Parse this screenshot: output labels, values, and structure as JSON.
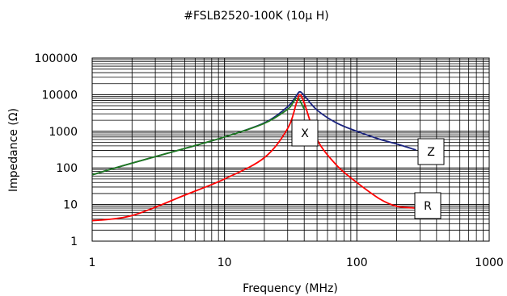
{
  "chart_data": {
    "type": "line",
    "title": "#FSLB2520-100K (10μ H)",
    "xlabel": "Frequency (MHz)",
    "ylabel": "Impedance (Ω)",
    "x_scale": "log",
    "y_scale": "log",
    "xlim": [
      1,
      1000
    ],
    "ylim": [
      1,
      100000
    ],
    "x_ticks": [
      {
        "value": 1,
        "label": "1"
      },
      {
        "value": 10,
        "label": "10"
      },
      {
        "value": 100,
        "label": "100"
      },
      {
        "value": 1000,
        "label": "1000"
      }
    ],
    "y_ticks": [
      {
        "value": 1,
        "label": "1"
      },
      {
        "value": 10,
        "label": "10"
      },
      {
        "value": 100,
        "label": "100"
      },
      {
        "value": 1000,
        "label": "1000"
      },
      {
        "value": 10000,
        "label": "10000"
      },
      {
        "value": 100000,
        "label": "100000"
      }
    ],
    "grid": true,
    "colors": {
      "Z": "#1a237e",
      "X": "#1f7a1f",
      "R": "#ff0000"
    },
    "series": [
      {
        "name": "Z",
        "x": [
          1,
          2,
          5,
          10,
          20,
          30,
          35,
          37,
          40,
          50,
          70,
          100,
          150,
          200,
          280
        ],
        "y": [
          65,
          135,
          340,
          700,
          1700,
          4700,
          9500,
          12000,
          9500,
          3800,
          1700,
          1000,
          600,
          450,
          310
        ]
      },
      {
        "name": "X",
        "x": [
          1,
          2,
          5,
          10,
          20,
          30,
          33,
          35,
          37,
          40
        ],
        "y": [
          65,
          135,
          340,
          700,
          1650,
          4000,
          6200,
          8000,
          7000,
          4000
        ]
      },
      {
        "name": "R",
        "x": [
          1,
          2,
          5,
          10,
          20,
          30,
          35,
          37,
          40,
          50,
          70,
          100,
          150,
          200,
          280
        ],
        "y": [
          3.6,
          5,
          18,
          50,
          190,
          1200,
          6000,
          10000,
          6000,
          600,
          120,
          40,
          14,
          9,
          8
        ]
      }
    ],
    "annotations": [
      {
        "label": "X",
        "series": "X"
      },
      {
        "label": "Z",
        "series": "Z"
      },
      {
        "label": "R",
        "series": "R"
      }
    ]
  }
}
